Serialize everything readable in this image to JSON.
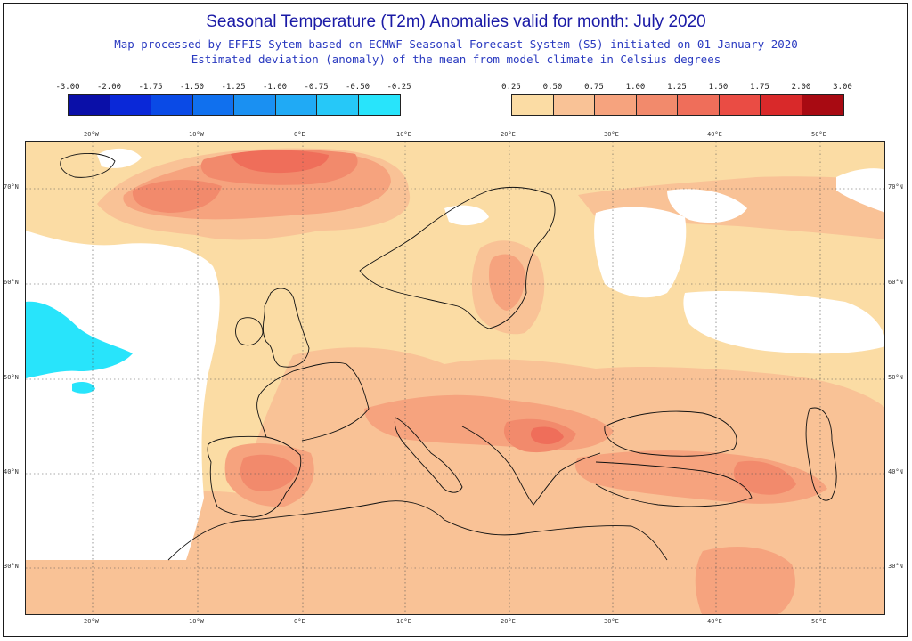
{
  "title": "Seasonal Temperature (T2m) Anomalies valid for month: July 2020",
  "subtitle1": "Map processed by EFFIS Sytem based on ECMWF Seasonal Forecast System (S5) initiated on 01 January 2020",
  "subtitle2": "Estimated deviation (anomaly) of the mean from model climate in Celsius degrees",
  "legend_negative": {
    "labels": [
      "-3.00",
      "-2.00",
      "-1.75",
      "-1.50",
      "-1.25",
      "-1.00",
      "-0.75",
      "-0.50",
      "-0.25"
    ],
    "colors": [
      "#0a0fa8",
      "#0a28d8",
      "#0a4ae6",
      "#1070ee",
      "#1a90f2",
      "#20aaf5",
      "#26c8f8",
      "#28e4fb"
    ]
  },
  "legend_positive": {
    "labels": [
      "0.25",
      "0.50",
      "0.75",
      "1.00",
      "1.25",
      "1.50",
      "1.75",
      "2.00",
      "3.00"
    ],
    "colors": [
      "#fbdca4",
      "#f9c296",
      "#f6a37e",
      "#f28a6c",
      "#ef6e5a",
      "#ea4c44",
      "#d9292a",
      "#a80a12"
    ]
  },
  "lon_labels": [
    "20°W",
    "10°W",
    "0°E",
    "10°E",
    "20°E",
    "30°E",
    "40°E",
    "50°E"
  ],
  "lat_labels": [
    "70°N",
    "60°N",
    "50°N",
    "40°N",
    "30°N"
  ],
  "colors": {
    "no_anomaly": "#ffffff",
    "level1": "#fbdca4",
    "level2": "#f9c296",
    "level3": "#f6a37e",
    "level4": "#f28a6c",
    "level5": "#ef6e5a",
    "cold1": "#28e4fb",
    "coast": "#111111",
    "grid": "#555555"
  }
}
